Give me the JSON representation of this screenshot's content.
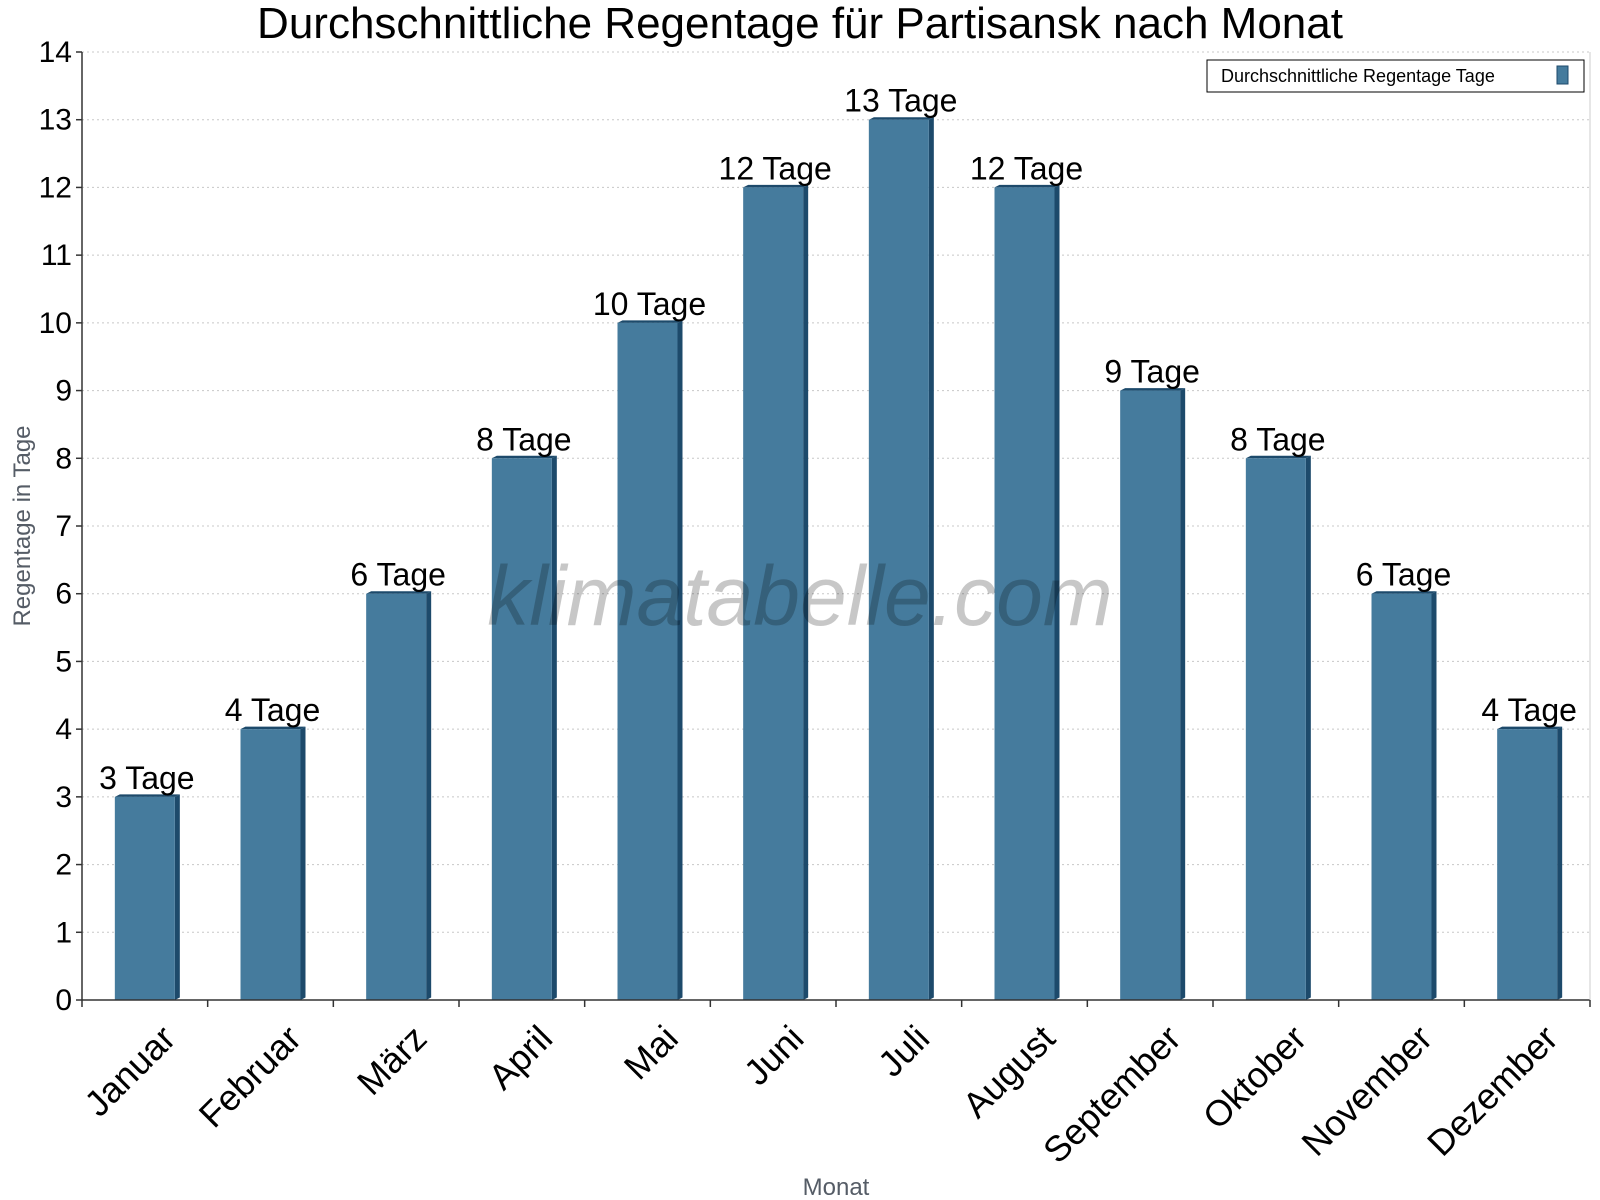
{
  "chart_data": {
    "type": "bar",
    "title": "Durchschnittliche Regentage für Partisansk nach Monat",
    "xlabel": "Monat",
    "ylabel": "Regentage in Tage",
    "ylim": [
      0,
      14
    ],
    "yticks": [
      "0",
      "1",
      "2",
      "3",
      "4",
      "5",
      "6",
      "7",
      "8",
      "9",
      "10",
      "11",
      "12",
      "13",
      "14"
    ],
    "grid": true,
    "legend_position": "top-right",
    "categories": [
      "Januar",
      "Februar",
      "März",
      "April",
      "Mai",
      "Juni",
      "Juli",
      "August",
      "September",
      "Oktober",
      "November",
      "Dezember"
    ],
    "series": [
      {
        "name": "Durchschnittliche Regentage Tage",
        "color": "#457b9d",
        "values": [
          3,
          4,
          6,
          8,
          10,
          12,
          13,
          12,
          9,
          8,
          6,
          4
        ],
        "labels": [
          "3 Tage",
          "4 Tage",
          "6 Tage",
          "8 Tage",
          "10 Tage",
          "12 Tage",
          "13 Tage",
          "12 Tage",
          "9 Tage",
          "8 Tage",
          "6 Tage",
          "4 Tage"
        ]
      }
    ]
  },
  "watermark": "klimatabelle.com"
}
